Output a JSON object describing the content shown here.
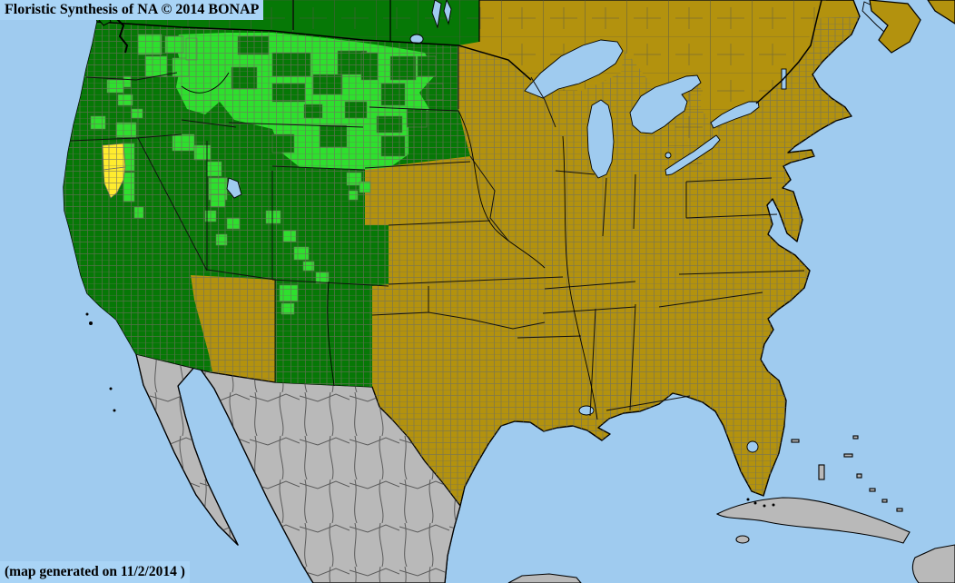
{
  "header": {
    "title": "Floristic Synthesis of NA © 2014 BONAP"
  },
  "footer": {
    "note": "(map generated on 11/2/2014 )"
  },
  "colors": {
    "water": "#9fcbef",
    "label_box": "#a9d4f6",
    "olive_absent": "#b3920e",
    "dark_green_present": "#067806",
    "bright_green_county": "#2ee02e",
    "yellow_rare_county": "#ffec2e",
    "gray_outside": "#b9b9b9",
    "county_line": "#6e6e5e",
    "border_black": "#000000"
  },
  "map": {
    "bright_counties": [
      [
        152,
        38,
        26,
        22
      ],
      [
        182,
        40,
        20,
        18
      ],
      [
        160,
        62,
        24,
        22
      ],
      [
        190,
        64,
        18,
        20
      ],
      [
        205,
        42,
        12,
        24
      ],
      [
        136,
        84,
        8,
        12
      ],
      [
        118,
        88,
        18,
        14
      ],
      [
        130,
        104,
        16,
        12
      ],
      [
        100,
        128,
        16,
        14
      ],
      [
        128,
        135,
        22,
        16
      ],
      [
        145,
        120,
        12,
        10
      ],
      [
        134,
        158,
        14,
        30
      ],
      [
        136,
        190,
        12,
        32
      ],
      [
        148,
        228,
        10,
        12
      ],
      [
        190,
        148,
        24,
        18
      ],
      [
        214,
        160,
        18,
        16
      ],
      [
        228,
        178,
        16,
        16
      ],
      [
        230,
        196,
        20,
        24
      ],
      [
        252,
        202,
        12,
        10
      ],
      [
        232,
        214,
        16,
        14
      ],
      [
        226,
        232,
        12,
        12
      ],
      [
        250,
        240,
        14,
        12
      ],
      [
        238,
        258,
        12,
        12
      ],
      [
        293,
        232,
        16,
        14
      ],
      [
        312,
        254,
        14,
        12
      ],
      [
        324,
        272,
        16,
        14
      ],
      [
        334,
        288,
        12,
        10
      ],
      [
        308,
        314,
        20,
        18
      ],
      [
        310,
        334,
        14,
        12
      ],
      [
        348,
        300,
        14,
        12
      ],
      [
        382,
        190,
        16,
        14
      ],
      [
        396,
        200,
        12,
        12
      ],
      [
        384,
        210,
        10,
        10
      ]
    ],
    "dark_patches": [
      [
        262,
        40,
        34,
        20
      ],
      [
        300,
        58,
        42,
        26
      ],
      [
        345,
        82,
        32,
        22
      ],
      [
        372,
        56,
        32,
        26
      ],
      [
        255,
        74,
        28,
        24
      ],
      [
        300,
        92,
        36,
        20
      ],
      [
        398,
        58,
        18,
        30
      ],
      [
        430,
        62,
        28,
        26
      ],
      [
        460,
        62,
        20,
        22
      ],
      [
        470,
        92,
        18,
        18
      ],
      [
        420,
        92,
        26,
        24
      ],
      [
        448,
        120,
        22,
        20
      ],
      [
        415,
        128,
        28,
        18
      ],
      [
        352,
        138,
        30,
        24
      ],
      [
        300,
        148,
        24,
        20
      ],
      [
        420,
        150,
        26,
        22
      ],
      [
        380,
        112,
        24,
        18
      ],
      [
        335,
        115,
        20,
        15
      ]
    ],
    "yellow_counties": [
      "113,160 136,158 138,184 114,187",
      "114,187 138,184 136,198 129,212 122,218 115,202"
    ]
  }
}
